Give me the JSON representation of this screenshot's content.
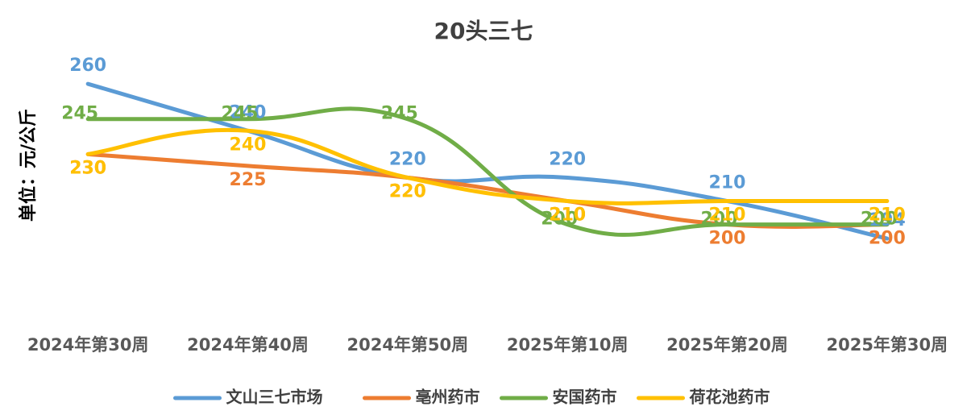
{
  "chart_data": {
    "type": "line",
    "title": "20头三七",
    "ylabel": "单位：元/公斤",
    "xlabel": "",
    "categories": [
      "2024年第30周",
      "2024年第40周",
      "2024年第50周",
      "2025年第10周",
      "2025年第20周",
      "2025年第30周"
    ],
    "ylim": [
      160,
      270
    ],
    "grid": false,
    "legend_position": "bottom",
    "smooth": true,
    "series": [
      {
        "name": "文山三七市场",
        "color": "#5B9BD5",
        "values": [
          260,
          240,
          220,
          220,
          210,
          194
        ]
      },
      {
        "name": "亳州药市",
        "color": "#ED7D31",
        "values": [
          230,
          225,
          220,
          210,
          200,
          200
        ]
      },
      {
        "name": "安国药市",
        "color": "#70AD47",
        "values": [
          245,
          245,
          245,
          200,
          200,
          200
        ]
      },
      {
        "name": "荷花池药市",
        "color": "#FFC000",
        "values": [
          230,
          240,
          220,
          210,
          210,
          210
        ]
      }
    ]
  }
}
